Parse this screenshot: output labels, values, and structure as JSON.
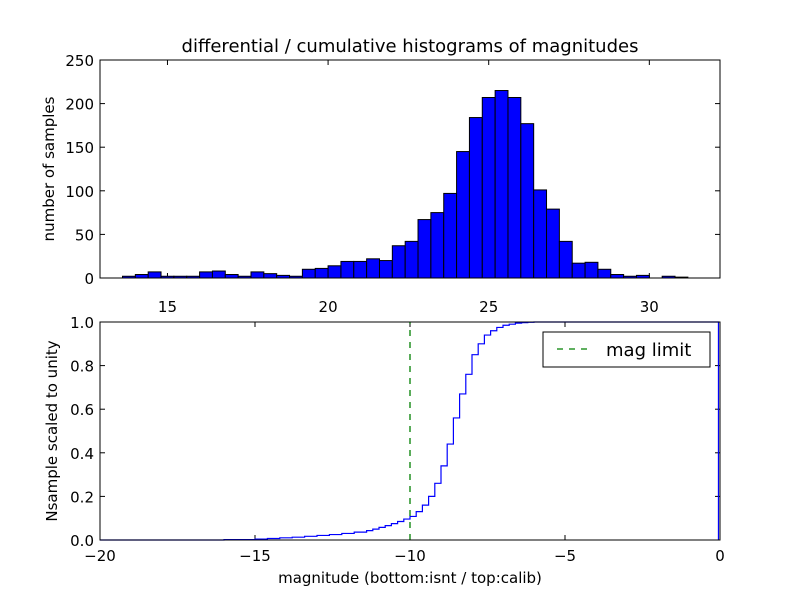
{
  "figure": {
    "background": "#ffffff"
  },
  "chart_data": [
    {
      "type": "bar",
      "title": "differential / cumulative histograms of magnitudes",
      "xlabel": "",
      "ylabel": "number of samples",
      "xlim": [
        12.9,
        32.2
      ],
      "ylim": [
        0,
        250
      ],
      "xticks": [
        15,
        20,
        25,
        30
      ],
      "xtick_labels": [
        "15",
        "20",
        "25",
        "30"
      ],
      "yticks": [
        0,
        50,
        100,
        150,
        200,
        250
      ],
      "ytick_labels": [
        "0",
        "50",
        "100",
        "150",
        "200",
        "250"
      ],
      "xtick_label_position": "bottom",
      "bar_color": "#0000ff",
      "edge_color": "#000000",
      "bin_edges": [
        13.6,
        14.0,
        14.4,
        14.8,
        15.2,
        15.6,
        16.0,
        16.4,
        16.8,
        17.2,
        17.6,
        18.0,
        18.4,
        18.8,
        19.2,
        19.6,
        20.0,
        20.4,
        20.8,
        21.2,
        21.6,
        22.0,
        22.4,
        22.8,
        23.2,
        23.6,
        24.0,
        24.4,
        24.8,
        25.2,
        25.6,
        26.0,
        26.4,
        26.8,
        27.2,
        27.6,
        28.0,
        28.4,
        28.8,
        29.2,
        29.6,
        30.0,
        30.4,
        30.8,
        31.2,
        31.6,
        32.0
      ],
      "counts": [
        2,
        4,
        7,
        2,
        2,
        2,
        7,
        8,
        4,
        2,
        7,
        5,
        3,
        2,
        10,
        11,
        14,
        19,
        19,
        22,
        20,
        37,
        42,
        67,
        75,
        97,
        145,
        184,
        207,
        215,
        207,
        177,
        101,
        79,
        42,
        17,
        18,
        10,
        4,
        2,
        3,
        0,
        2,
        1,
        0,
        0
      ]
    },
    {
      "type": "line",
      "drawstyle": "steps",
      "title": "",
      "xlabel": "magnitude (bottom:isnt / top:calib)",
      "ylabel": "Nsample scaled to unity",
      "xlim": [
        -20,
        0
      ],
      "ylim": [
        0.0,
        1.0
      ],
      "xticks": [
        -20,
        -15,
        -10,
        -5,
        0
      ],
      "xtick_labels": [
        "−20",
        "−15",
        "−10",
        "−5",
        "0"
      ],
      "yticks": [
        0.0,
        0.2,
        0.4,
        0.6,
        0.8,
        1.0
      ],
      "ytick_labels": [
        "0.0",
        "0.2",
        "0.4",
        "0.6",
        "0.8",
        "1.0"
      ],
      "legend_position": "top-right",
      "series": [
        {
          "color": "#0000ff",
          "style": "solid",
          "x": [
            -20.0,
            -16.0,
            -15.0,
            -14.6,
            -14.2,
            -13.8,
            -13.4,
            -13.0,
            -12.6,
            -12.2,
            -11.8,
            -11.4,
            -11.2,
            -11.0,
            -10.8,
            -10.6,
            -10.4,
            -10.2,
            -10.0,
            -9.8,
            -9.6,
            -9.4,
            -9.2,
            -9.0,
            -8.8,
            -8.6,
            -8.4,
            -8.2,
            -8.0,
            -7.8,
            -7.6,
            -7.4,
            -7.2,
            -7.0,
            -6.8,
            -6.6,
            -6.4,
            -6.2,
            -6.0,
            -5.8,
            -5.6,
            -5.4,
            -0.05,
            -0.05
          ],
          "y": [
            0.0,
            0.002,
            0.004,
            0.007,
            0.01,
            0.013,
            0.017,
            0.021,
            0.025,
            0.03,
            0.036,
            0.043,
            0.05,
            0.058,
            0.066,
            0.075,
            0.085,
            0.096,
            0.108,
            0.13,
            0.16,
            0.2,
            0.26,
            0.34,
            0.44,
            0.56,
            0.67,
            0.76,
            0.85,
            0.9,
            0.94,
            0.96,
            0.975,
            0.985,
            0.99,
            0.995,
            0.997,
            0.999,
            1.0,
            1.0,
            1.0,
            1.0,
            1.0,
            0.0
          ]
        },
        {
          "name": "mag limit",
          "color": "#008000",
          "style": "dashed",
          "x": [
            -10,
            -10
          ],
          "y": [
            0.0,
            1.0
          ]
        }
      ]
    }
  ]
}
